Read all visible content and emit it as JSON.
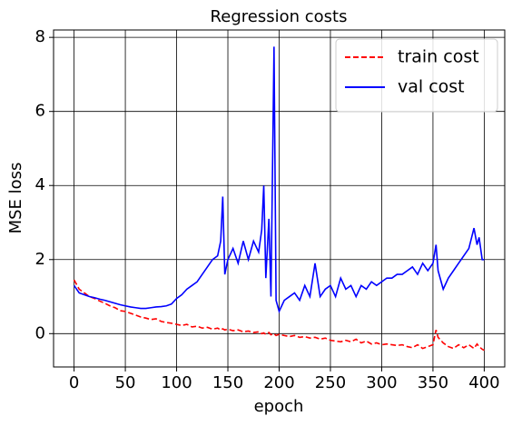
{
  "chart_data": {
    "type": "line",
    "title": "Regression costs",
    "x_label": "epoch",
    "y_label": "MSE loss",
    "x": [
      0,
      5,
      10,
      15,
      20,
      25,
      30,
      35,
      40,
      45,
      50,
      55,
      60,
      65,
      70,
      75,
      80,
      85,
      90,
      95,
      100,
      105,
      110,
      115,
      120,
      125,
      130,
      135,
      140,
      143,
      145,
      147,
      150,
      155,
      160,
      165,
      170,
      175,
      180,
      183,
      185,
      187,
      190,
      192,
      195,
      197,
      200,
      205,
      210,
      215,
      220,
      225,
      230,
      235,
      240,
      245,
      250,
      255,
      260,
      265,
      270,
      275,
      280,
      285,
      290,
      295,
      300,
      305,
      310,
      315,
      320,
      325,
      330,
      335,
      340,
      345,
      350,
      353,
      355,
      360,
      365,
      370,
      375,
      380,
      385,
      390,
      393,
      395,
      398,
      400
    ],
    "series": [
      {
        "name": "train cost",
        "color": "#ff0000",
        "linestyle": "dashed",
        "values": [
          1.45,
          1.2,
          1.1,
          1.0,
          0.95,
          0.88,
          0.82,
          0.75,
          0.7,
          0.62,
          0.6,
          0.55,
          0.5,
          0.45,
          0.42,
          0.38,
          0.4,
          0.33,
          0.3,
          0.28,
          0.25,
          0.22,
          0.25,
          0.18,
          0.2,
          0.15,
          0.17,
          0.12,
          0.15,
          0.1,
          0.13,
          0.1,
          0.12,
          0.08,
          0.1,
          0.05,
          0.07,
          0.03,
          0.05,
          0.0,
          0.02,
          -0.02,
          0.03,
          -0.03,
          0.0,
          -0.05,
          -0.02,
          -0.05,
          -0.08,
          -0.05,
          -0.1,
          -0.08,
          -0.12,
          -0.1,
          -0.15,
          -0.12,
          -0.18,
          -0.2,
          -0.22,
          -0.18,
          -0.22,
          -0.15,
          -0.25,
          -0.2,
          -0.28,
          -0.25,
          -0.3,
          -0.28,
          -0.3,
          -0.32,
          -0.3,
          -0.35,
          -0.38,
          -0.3,
          -0.4,
          -0.35,
          -0.3,
          0.1,
          -0.1,
          -0.25,
          -0.35,
          -0.4,
          -0.3,
          -0.38,
          -0.3,
          -0.4,
          -0.28,
          -0.35,
          -0.42,
          -0.45
        ]
      },
      {
        "name": "val cost",
        "color": "#0000ff",
        "linestyle": "solid",
        "values": [
          1.3,
          1.1,
          1.05,
          1.0,
          0.97,
          0.93,
          0.9,
          0.86,
          0.82,
          0.78,
          0.75,
          0.72,
          0.7,
          0.68,
          0.68,
          0.7,
          0.72,
          0.73,
          0.75,
          0.8,
          0.95,
          1.05,
          1.2,
          1.3,
          1.4,
          1.6,
          1.8,
          2.0,
          2.1,
          2.5,
          3.7,
          1.6,
          2.0,
          2.3,
          1.9,
          2.5,
          2.0,
          2.5,
          2.2,
          2.8,
          4.0,
          1.5,
          3.1,
          1.0,
          7.75,
          0.9,
          0.6,
          0.9,
          1.0,
          1.1,
          0.9,
          1.3,
          1.0,
          1.9,
          1.0,
          1.2,
          1.3,
          1.0,
          1.5,
          1.2,
          1.3,
          1.0,
          1.3,
          1.2,
          1.4,
          1.3,
          1.4,
          1.5,
          1.5,
          1.6,
          1.6,
          1.7,
          1.8,
          1.6,
          1.9,
          1.7,
          1.9,
          2.4,
          1.7,
          1.2,
          1.5,
          1.7,
          1.9,
          2.1,
          2.3,
          2.85,
          2.4,
          2.6,
          2.0,
          2.0
        ]
      }
    ],
    "xlim": [
      -20,
      420
    ],
    "ylim": [
      -0.9,
      8.2
    ],
    "xticks": [
      0,
      50,
      100,
      150,
      200,
      250,
      300,
      350,
      400
    ],
    "yticks": [
      0,
      2,
      4,
      6,
      8
    ],
    "grid": true,
    "legend": "upper right"
  }
}
